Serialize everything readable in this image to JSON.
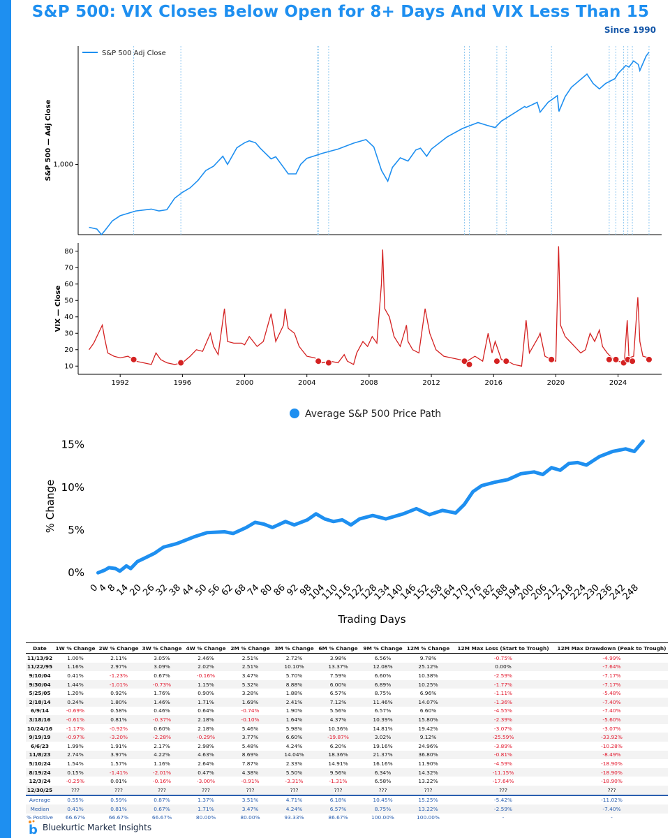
{
  "title": "S&P 500: VIX Closes Below Open for 8+ Days And VIX Less Than 15",
  "subtitle": "Since 1990",
  "chart_data": [
    {
      "type": "line",
      "name": "sp500-price",
      "series": [
        {
          "name": "S&P 500 Adj Close",
          "color": "#1e8ff0",
          "x": [
            1990.0,
            1990.5,
            1990.8,
            1991.0,
            1991.5,
            1992.0,
            1993.0,
            1994.0,
            1994.5,
            1995.0,
            1995.5,
            1996.0,
            1996.5,
            1997.0,
            1997.5,
            1998.0,
            1998.6,
            1998.9,
            1999.5,
            2000.0,
            2000.3,
            2000.7,
            2001.0,
            2001.7,
            2002.0,
            2002.5,
            2002.8,
            2003.3,
            2003.6,
            2004.0,
            2005.0,
            2006.0,
            2007.0,
            2007.8,
            2008.3,
            2008.8,
            2009.2,
            2009.5,
            2010.0,
            2010.5,
            2011.0,
            2011.3,
            2011.7,
            2012.0,
            2013.0,
            2014.0,
            2015.0,
            2015.6,
            2016.1,
            2016.5,
            2017.0,
            2018.0,
            2018.1,
            2018.8,
            2018.99,
            2019.5,
            2020.1,
            2020.2,
            2020.6,
            2021.0,
            2022.0,
            2022.4,
            2022.8,
            2023.2,
            2023.8,
            2024.0,
            2024.5,
            2024.7,
            2025.0,
            2025.3,
            2025.4,
            2025.8,
            2025.99
          ],
          "y": [
            340,
            330,
            300,
            320,
            380,
            415,
            450,
            465,
            450,
            460,
            560,
            620,
            670,
            760,
            900,
            970,
            1150,
            1000,
            1330,
            1450,
            1500,
            1450,
            1320,
            1100,
            1140,
            950,
            850,
            850,
            1000,
            1110,
            1210,
            1300,
            1440,
            1530,
            1350,
            900,
            750,
            950,
            1120,
            1060,
            1280,
            1320,
            1150,
            1300,
            1600,
            1850,
            2050,
            1950,
            1880,
            2100,
            2280,
            2700,
            2650,
            2900,
            2450,
            2900,
            3250,
            2480,
            3200,
            3750,
            4700,
            4000,
            3650,
            4000,
            4350,
            4750,
            5450,
            5300,
            5900,
            5550,
            5000,
            6400,
            6850
          ]
        }
      ],
      "title": "",
      "xlabel": "",
      "ylabel": "S&P 500 — Adj Close",
      "yscale": "log",
      "ylim": [
        300,
        7600
      ],
      "xlim": [
        1989.3,
        2026.8
      ],
      "yticks": [
        {
          "value": 1000,
          "label": "1,000"
        }
      ],
      "signal_dates": [
        1992.87,
        1995.9,
        2004.69,
        2004.74,
        2005.4,
        2014.13,
        2014.44,
        2016.21,
        2016.81,
        2019.72,
        2023.43,
        2023.86,
        2024.36,
        2024.63,
        2024.92,
        2025.99
      ],
      "legend": "upper-left"
    },
    {
      "type": "line",
      "name": "vix-close",
      "series": [
        {
          "name": "VIX Close",
          "color": "#d42222",
          "x": [
            1990.0,
            1990.3,
            1990.7,
            1990.85,
            1991.0,
            1991.2,
            1991.6,
            1992.0,
            1992.5,
            1993.0,
            1993.5,
            1994.0,
            1994.3,
            1994.6,
            1995.0,
            1995.5,
            1996.0,
            1996.5,
            1996.9,
            1997.3,
            1997.8,
            1998.0,
            1998.3,
            1998.7,
            1998.9,
            1999.3,
            1999.8,
            2000.0,
            2000.3,
            2000.8,
            2001.2,
            2001.7,
            2002.0,
            2002.5,
            2002.6,
            2002.8,
            2003.2,
            2003.5,
            2004.0,
            2004.5,
            2005.0,
            2005.5,
            2006.0,
            2006.4,
            2006.6,
            2007.0,
            2007.2,
            2007.6,
            2007.9,
            2008.2,
            2008.5,
            2008.79,
            2008.87,
            2009.0,
            2009.3,
            2009.6,
            2010.0,
            2010.4,
            2010.5,
            2010.8,
            2011.2,
            2011.6,
            2011.9,
            2012.3,
            2012.8,
            2013.3,
            2013.8,
            2014.3,
            2014.8,
            2015.3,
            2015.65,
            2015.9,
            2016.1,
            2016.5,
            2016.9,
            2017.3,
            2017.8,
            2018.09,
            2018.3,
            2018.9,
            2018.99,
            2019.3,
            2019.7,
            2020.0,
            2020.18,
            2020.3,
            2020.6,
            2020.9,
            2021.2,
            2021.6,
            2021.9,
            2022.2,
            2022.5,
            2022.8,
            2023.0,
            2023.3,
            2023.7,
            2024.0,
            2024.4,
            2024.59,
            2024.7,
            2025.0,
            2025.27,
            2025.4,
            2025.6,
            2025.99
          ],
          "y": [
            20,
            24,
            32,
            35,
            27,
            18,
            16,
            15,
            16,
            13,
            12,
            11,
            18,
            14,
            12,
            11,
            12,
            16,
            20,
            19,
            30,
            22,
            17,
            45,
            25,
            24,
            24,
            23,
            28,
            22,
            25,
            42,
            25,
            35,
            45,
            33,
            30,
            22,
            16,
            15,
            12,
            13,
            12,
            17,
            13,
            11,
            18,
            25,
            22,
            28,
            24,
            60,
            81,
            45,
            40,
            28,
            22,
            35,
            25,
            20,
            18,
            45,
            30,
            20,
            16,
            15,
            14,
            13,
            16,
            13,
            30,
            18,
            25,
            14,
            13,
            11,
            10,
            38,
            18,
            28,
            30,
            16,
            14,
            13,
            83,
            35,
            28,
            25,
            22,
            18,
            20,
            30,
            25,
            32,
            22,
            18,
            14,
            13,
            12,
            38,
            15,
            16,
            52,
            25,
            16,
            15
          ]
        }
      ],
      "title": "",
      "xlabel": "",
      "ylabel": "VIX — Close",
      "ylim": [
        5,
        85
      ],
      "xlim": [
        1989.3,
        2026.8
      ],
      "yticks": [
        10,
        20,
        30,
        40,
        50,
        60,
        70,
        80
      ],
      "xticks": [
        1992,
        1996,
        2000,
        2004,
        2008,
        2012,
        2016,
        2020,
        2024
      ],
      "signal_markers": [
        {
          "x": 1992.87,
          "y": 14
        },
        {
          "x": 1995.9,
          "y": 12
        },
        {
          "x": 2004.69,
          "y": 13
        },
        {
          "x": 2004.74,
          "y": 13
        },
        {
          "x": 2005.4,
          "y": 12
        },
        {
          "x": 2014.13,
          "y": 13
        },
        {
          "x": 2014.44,
          "y": 11
        },
        {
          "x": 2016.21,
          "y": 13
        },
        {
          "x": 2016.81,
          "y": 13
        },
        {
          "x": 2019.72,
          "y": 14
        },
        {
          "x": 2023.43,
          "y": 14
        },
        {
          "x": 2023.86,
          "y": 14
        },
        {
          "x": 2024.36,
          "y": 12
        },
        {
          "x": 2024.63,
          "y": 14
        },
        {
          "x": 2024.92,
          "y": 13
        },
        {
          "x": 2025.99,
          "y": 14
        }
      ]
    },
    {
      "type": "line",
      "name": "average-price-path",
      "series": [
        {
          "name": "Average S&P 500 Price Path",
          "color": "#1e8ff0",
          "x": [
            0,
            3,
            5,
            8,
            10,
            13,
            15,
            18,
            22,
            26,
            30,
            36,
            44,
            50,
            58,
            62,
            68,
            72,
            76,
            80,
            86,
            90,
            96,
            100,
            104,
            108,
            112,
            116,
            120,
            126,
            132,
            140,
            146,
            152,
            158,
            164,
            168,
            172,
            176,
            182,
            188,
            194,
            200,
            204,
            208,
            212,
            216,
            220,
            224,
            230,
            236,
            242,
            246,
            250
          ],
          "y": [
            0,
            0.3,
            0.6,
            0.5,
            0.2,
            0.8,
            0.5,
            1.3,
            1.8,
            2.3,
            3.0,
            3.4,
            4.2,
            4.7,
            4.8,
            4.6,
            5.3,
            5.9,
            5.7,
            5.3,
            6.0,
            5.6,
            6.2,
            6.9,
            6.3,
            6.0,
            6.2,
            5.6,
            6.3,
            6.7,
            6.3,
            6.9,
            7.5,
            6.8,
            7.3,
            7.0,
            8.0,
            9.5,
            10.2,
            10.6,
            10.9,
            11.6,
            11.8,
            11.5,
            12.3,
            12.0,
            12.8,
            12.9,
            12.6,
            13.6,
            14.2,
            14.5,
            14.2,
            15.4
          ]
        }
      ],
      "title": "",
      "xlabel": "Trading Days",
      "ylabel": "% Change",
      "xlim": [
        -4,
        255
      ],
      "ylim": [
        -0.8,
        16.2
      ],
      "yticks": [
        {
          "value": 0,
          "label": "0%"
        },
        {
          "value": 5,
          "label": "5%"
        },
        {
          "value": 10,
          "label": "10%"
        },
        {
          "value": 15,
          "label": "15%"
        }
      ],
      "xticks": [
        0,
        4,
        8,
        14,
        20,
        26,
        32,
        38,
        44,
        50,
        56,
        62,
        68,
        74,
        80,
        86,
        92,
        98,
        104,
        110,
        116,
        122,
        128,
        134,
        140,
        146,
        152,
        158,
        164,
        170,
        176,
        182,
        188,
        194,
        200,
        206,
        212,
        218,
        224,
        230,
        236,
        242,
        248
      ],
      "legend": "top-center"
    }
  ],
  "table": {
    "headers": [
      "Date",
      "1W % Change",
      "2W % Change",
      "3W % Change",
      "4W % Change",
      "2M % Change",
      "3M % Change",
      "6M % Change",
      "9M % Change",
      "12M % Change",
      "12M Max Loss (Start to Trough)",
      "12M Max Drawdown (Peak to Trough)"
    ],
    "rows": [
      [
        "11/13/92",
        "1.00%",
        "2.11%",
        "3.05%",
        "2.46%",
        "2.51%",
        "2.72%",
        "3.98%",
        "6.56%",
        "9.78%",
        "-0.75%",
        "-4.99%"
      ],
      [
        "11/22/95",
        "1.16%",
        "2.97%",
        "3.09%",
        "2.02%",
        "2.51%",
        "10.10%",
        "13.37%",
        "12.08%",
        "25.12%",
        "0.00%",
        "-7.64%"
      ],
      [
        "9/10/04",
        "0.41%",
        "-1.23%",
        "0.67%",
        "-0.16%",
        "3.47%",
        "5.70%",
        "7.59%",
        "6.60%",
        "10.38%",
        "-2.59%",
        "-7.17%"
      ],
      [
        "9/30/04",
        "1.44%",
        "-1.01%",
        "-0.73%",
        "1.15%",
        "5.32%",
        "8.88%",
        "6.00%",
        "6.89%",
        "10.25%",
        "-1.77%",
        "-7.17%"
      ],
      [
        "5/25/05",
        "1.20%",
        "0.92%",
        "1.76%",
        "0.90%",
        "3.28%",
        "1.88%",
        "6.57%",
        "8.75%",
        "6.96%",
        "-1.11%",
        "-5.48%"
      ],
      [
        "2/18/14",
        "0.24%",
        "1.80%",
        "1.46%",
        "1.71%",
        "1.69%",
        "2.41%",
        "7.12%",
        "11.46%",
        "14.07%",
        "-1.36%",
        "-7.40%"
      ],
      [
        "6/9/14",
        "-0.69%",
        "0.58%",
        "0.46%",
        "0.64%",
        "-0.74%",
        "1.90%",
        "5.56%",
        "6.57%",
        "6.60%",
        "-4.55%",
        "-7.40%"
      ],
      [
        "3/18/16",
        "-0.61%",
        "0.81%",
        "-0.37%",
        "2.18%",
        "-0.10%",
        "1.64%",
        "4.37%",
        "10.39%",
        "15.80%",
        "-2.39%",
        "-5.60%"
      ],
      [
        "10/24/16",
        "-1.17%",
        "-0.92%",
        "0.60%",
        "2.18%",
        "5.46%",
        "5.98%",
        "10.36%",
        "14.81%",
        "19.42%",
        "-3.07%",
        "-3.07%"
      ],
      [
        "9/19/19",
        "-0.97%",
        "-3.20%",
        "-2.28%",
        "-0.29%",
        "3.77%",
        "6.60%",
        "-19.87%",
        "3.02%",
        "9.12%",
        "-25.59%",
        "-33.92%"
      ],
      [
        "6/6/23",
        "1.99%",
        "1.91%",
        "2.17%",
        "2.98%",
        "5.48%",
        "4.24%",
        "6.20%",
        "19.16%",
        "24.96%",
        "-3.89%",
        "-10.28%"
      ],
      [
        "11/8/23",
        "2.74%",
        "3.97%",
        "4.22%",
        "4.63%",
        "8.69%",
        "14.04%",
        "18.36%",
        "21.37%",
        "36.80%",
        "-0.81%",
        "-8.49%"
      ],
      [
        "5/10/24",
        "1.54%",
        "1.57%",
        "1.16%",
        "2.64%",
        "7.87%",
        "2.33%",
        "14.91%",
        "16.16%",
        "11.90%",
        "-4.59%",
        "-18.90%"
      ],
      [
        "8/19/24",
        "0.15%",
        "-1.41%",
        "-2.01%",
        "0.47%",
        "4.38%",
        "5.50%",
        "9.56%",
        "6.34%",
        "14.32%",
        "-11.15%",
        "-18.90%"
      ],
      [
        "12/3/24",
        "-0.25%",
        "0.01%",
        "-0.16%",
        "-3.00%",
        "-0.91%",
        "-3.31%",
        "-1.31%",
        "6.58%",
        "13.22%",
        "-17.64%",
        "-18.90%"
      ],
      [
        "12/30/25",
        "???",
        "???",
        "???",
        "???",
        "???",
        "???",
        "???",
        "???",
        "???",
        "???",
        "???"
      ]
    ],
    "summary": [
      [
        "Average",
        "0.55%",
        "0.59%",
        "0.87%",
        "1.37%",
        "3.51%",
        "4.71%",
        "6.18%",
        "10.45%",
        "15.25%",
        "-5.42%",
        "-11.02%"
      ],
      [
        "Median",
        "0.41%",
        "0.81%",
        "0.67%",
        "1.71%",
        "3.47%",
        "4.24%",
        "6.57%",
        "8.75%",
        "13.22%",
        "-2.59%",
        "-7.40%"
      ],
      [
        "% Positive",
        "66.67%",
        "66.67%",
        "66.67%",
        "80.00%",
        "80.00%",
        "93.33%",
        "86.67%",
        "100.00%",
        "100.00%",
        "-",
        "-"
      ]
    ]
  },
  "footer": {
    "brand": "Bluekurtic Market Insights",
    "logo_letter": "b"
  }
}
